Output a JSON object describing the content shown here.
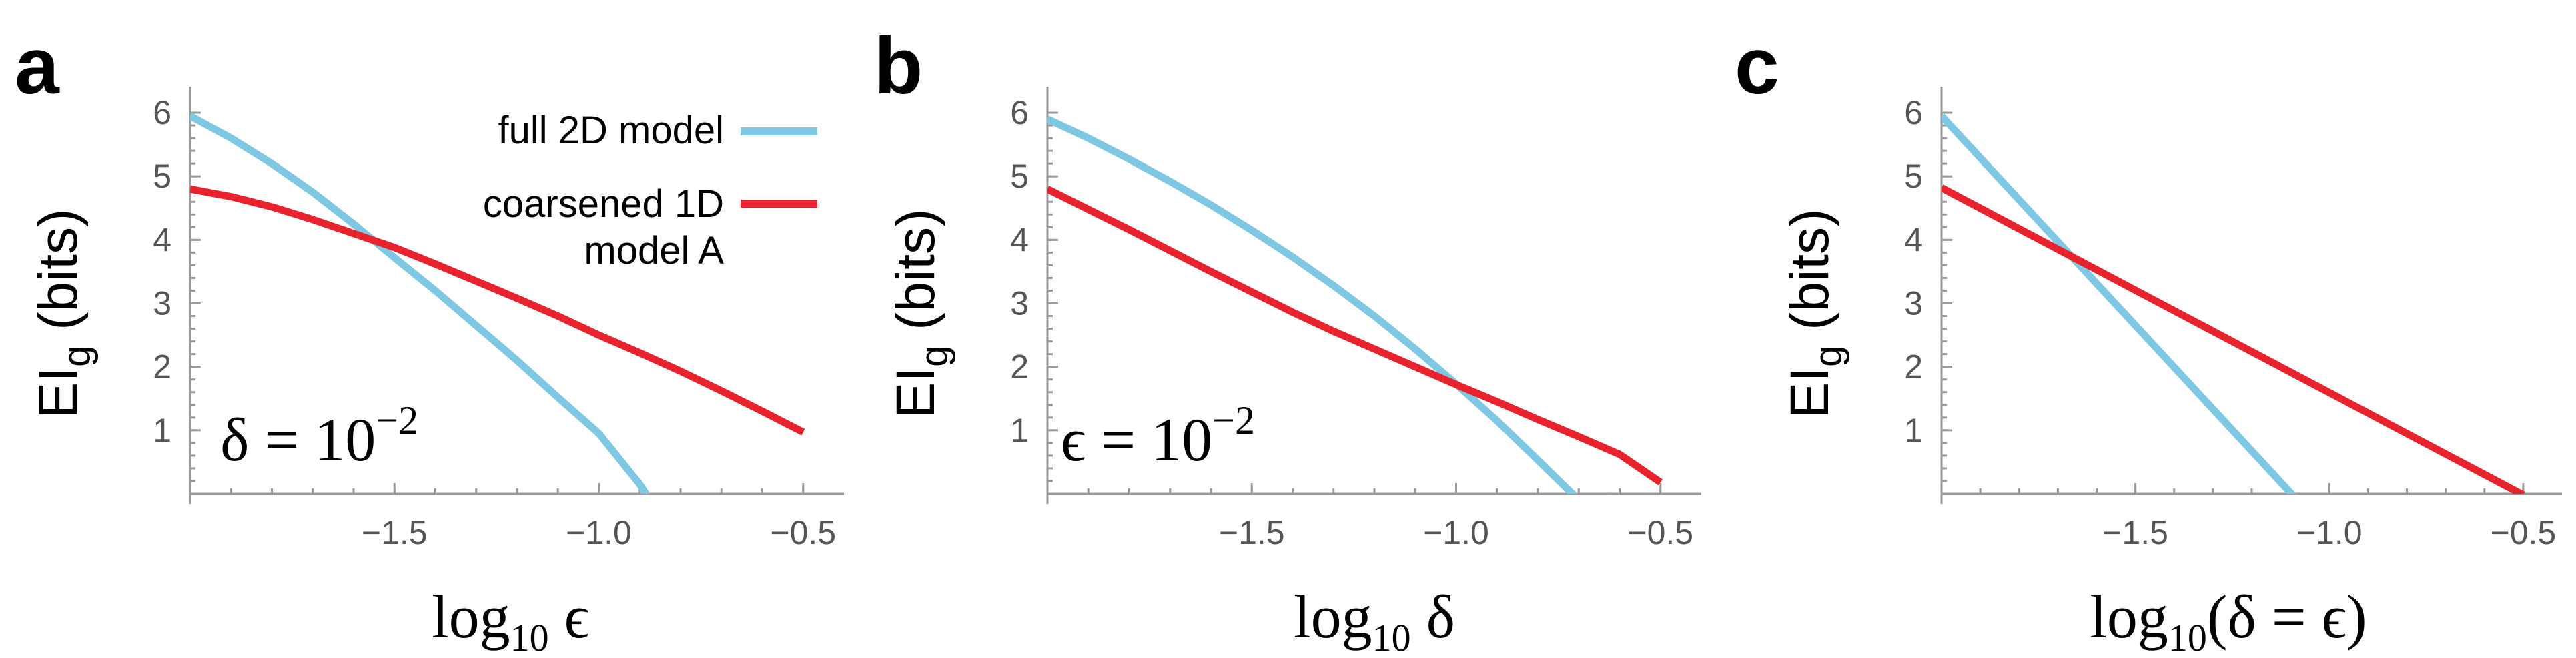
{
  "chart_data": [
    {
      "type": "line",
      "panel": "a",
      "xlabel": "log₁₀ ϵ",
      "ylabel": "EI_g (bits)",
      "annotation": "δ = 10⁻²",
      "xlim": [
        -2.0,
        -0.4
      ],
      "ylim": [
        0,
        6.2
      ],
      "xticks": [
        -1.5,
        -1.0,
        -0.5
      ],
      "xtick_labels": [
        "−1.5",
        "−1.0",
        "−0.5"
      ],
      "yticks": [
        1,
        2,
        3,
        4,
        5,
        6
      ],
      "ytick_labels": [
        "1",
        "2",
        "3",
        "4",
        "5",
        "6"
      ],
      "legend": {
        "placement": "top-right",
        "entries": [
          "full 2D model",
          "coarsened 1D model A"
        ]
      },
      "series": [
        {
          "name": "full 2D model",
          "color": "#7ec8e3",
          "x": [
            -2.0,
            -1.9,
            -1.8,
            -1.7,
            -1.6,
            -1.5,
            -1.4,
            -1.3,
            -1.2,
            -1.1,
            -1.0,
            -0.9,
            -0.88
          ],
          "y": [
            5.95,
            5.6,
            5.2,
            4.75,
            4.25,
            3.72,
            3.2,
            2.65,
            2.1,
            1.52,
            0.95,
            0.15,
            -0.05
          ]
        },
        {
          "name": "coarsened 1D model A",
          "color": "#e8232d",
          "x": [
            -2.0,
            -1.9,
            -1.8,
            -1.7,
            -1.6,
            -1.5,
            -1.4,
            -1.3,
            -1.2,
            -1.1,
            -1.0,
            -0.9,
            -0.8,
            -0.7,
            -0.6,
            -0.5
          ],
          "y": [
            4.8,
            4.68,
            4.52,
            4.32,
            4.1,
            3.88,
            3.62,
            3.35,
            3.08,
            2.8,
            2.5,
            2.22,
            1.93,
            1.62,
            1.3,
            0.97
          ]
        }
      ]
    },
    {
      "type": "line",
      "panel": "b",
      "xlabel": "log₁₀ δ",
      "ylabel": "EI_g (bits)",
      "annotation": "ϵ = 10⁻²",
      "xlim": [
        -2.0,
        -0.4
      ],
      "ylim": [
        0,
        6.2
      ],
      "xticks": [
        -1.5,
        -1.0,
        -0.5
      ],
      "xtick_labels": [
        "−1.5",
        "−1.0",
        "−0.5"
      ],
      "yticks": [
        1,
        2,
        3,
        4,
        5,
        6
      ],
      "ytick_labels": [
        "1",
        "2",
        "3",
        "4",
        "5",
        "6"
      ],
      "series": [
        {
          "name": "full 2D model",
          "color": "#7ec8e3",
          "x": [
            -2.0,
            -1.9,
            -1.8,
            -1.7,
            -1.6,
            -1.5,
            -1.4,
            -1.3,
            -1.2,
            -1.1,
            -1.0,
            -0.9,
            -0.8,
            -0.7,
            -0.62
          ],
          "y": [
            5.9,
            5.6,
            5.27,
            4.92,
            4.55,
            4.15,
            3.73,
            3.28,
            2.8,
            2.28,
            1.73,
            1.15,
            0.53,
            -0.1,
            -0.05
          ]
        },
        {
          "name": "coarsened 1D model A",
          "color": "#e8232d",
          "x": [
            -2.0,
            -1.9,
            -1.8,
            -1.7,
            -1.6,
            -1.5,
            -1.4,
            -1.3,
            -1.2,
            -1.1,
            -1.0,
            -0.9,
            -0.8,
            -0.7,
            -0.6,
            -0.5
          ],
          "y": [
            4.8,
            4.48,
            4.16,
            3.83,
            3.5,
            3.18,
            2.86,
            2.56,
            2.28,
            2.0,
            1.72,
            1.45,
            1.17,
            0.9,
            0.62,
            0.18
          ]
        }
      ]
    },
    {
      "type": "line",
      "panel": "c",
      "xlabel": "log₁₀(δ = ϵ)",
      "ylabel": "EI_g (bits)",
      "xlim": [
        -2.0,
        -0.4
      ],
      "ylim": [
        0,
        6.2
      ],
      "xticks": [
        -1.5,
        -1.0,
        -0.5
      ],
      "xtick_labels": [
        "−1.5",
        "−1.0",
        "−0.5"
      ],
      "yticks": [
        1,
        2,
        3,
        4,
        5,
        6
      ],
      "ytick_labels": [
        "1",
        "2",
        "3",
        "4",
        "5",
        "6"
      ],
      "series": [
        {
          "name": "full 2D model",
          "color": "#7ec8e3",
          "x": [
            -2.0,
            -1.09
          ],
          "y": [
            5.95,
            -0.05
          ]
        },
        {
          "name": "coarsened 1D model A",
          "color": "#e8232d",
          "x": [
            -2.0,
            -0.5
          ],
          "y": [
            4.82,
            -0.02
          ]
        }
      ]
    }
  ]
}
